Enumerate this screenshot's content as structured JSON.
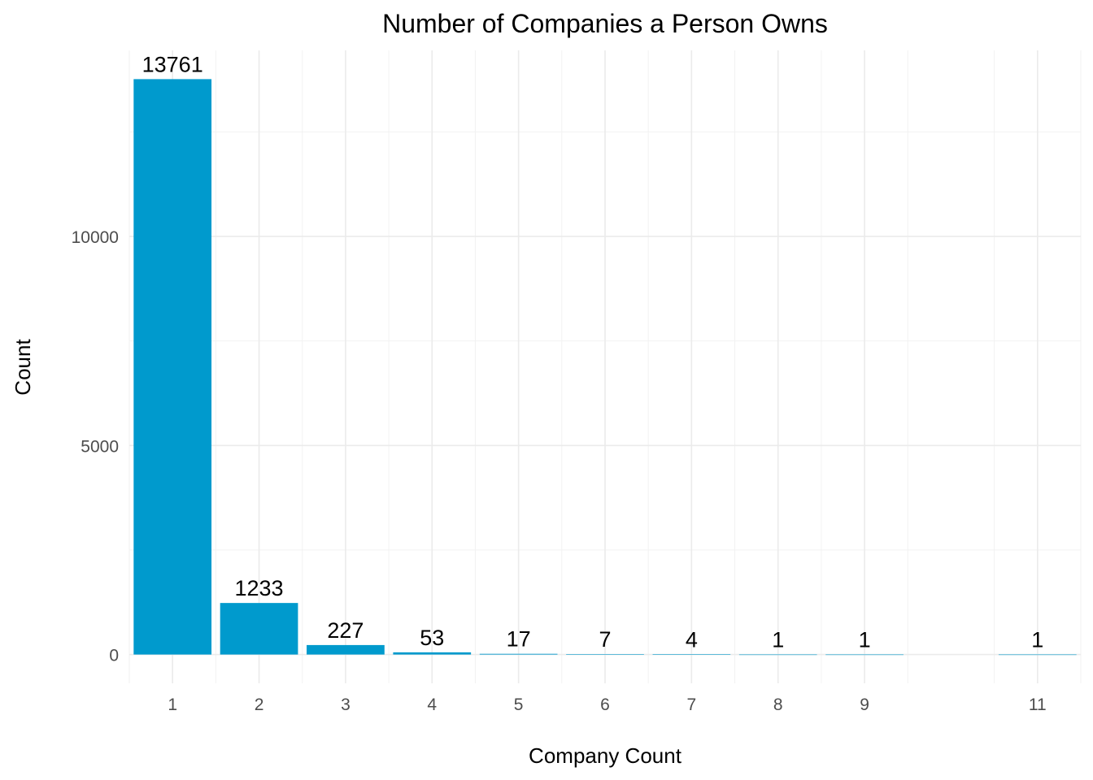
{
  "chart_data": {
    "type": "bar",
    "title": "Number of Companies a Person Owns",
    "xlabel": "Company Count",
    "ylabel": "Count",
    "x": [
      1,
      2,
      3,
      4,
      5,
      6,
      7,
      8,
      9,
      11
    ],
    "values": [
      13761,
      1233,
      227,
      53,
      17,
      7,
      4,
      1,
      1,
      1
    ],
    "x_ticks": [
      1,
      2,
      3,
      4,
      5,
      6,
      7,
      8,
      9,
      11
    ],
    "y_ticks": [
      0,
      5000,
      10000
    ],
    "xlim": [
      0.5,
      11.5
    ],
    "ylim": [
      -688,
      14449
    ],
    "bar_color": "#009ACD",
    "grid": true,
    "legend": "none"
  }
}
